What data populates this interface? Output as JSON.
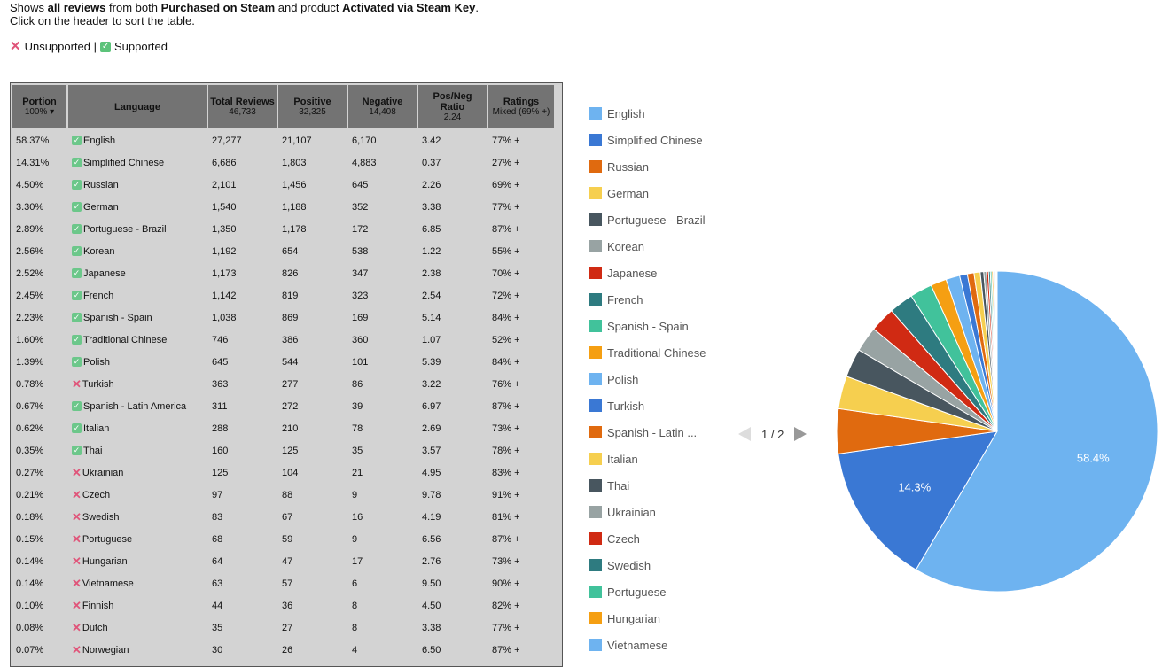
{
  "intro": {
    "l1_a": "Shows ",
    "l1_b": "all reviews",
    "l1_c": " from both ",
    "l1_d": "Purchased on Steam",
    "l1_e": " and product ",
    "l1_f": "Activated via Steam Key",
    "l1_g": ".",
    "line2": "Click on the header to sort the table."
  },
  "key": {
    "unsupported": "Unsupported |",
    "supported": "Supported"
  },
  "headers": {
    "portion": "Portion",
    "portion_sub": "100% ▾",
    "language": "Language",
    "total": "Total Reviews",
    "total_sub": "46,733",
    "positive": "Positive",
    "positive_sub": "32,325",
    "negative": "Negative",
    "negative_sub": "14,408",
    "ratio": "Pos/Neg Ratio",
    "ratio_sub": "2.24",
    "ratings": "Ratings",
    "ratings_sub": "Mixed (69% +)"
  },
  "rows": [
    {
      "portion": "58.37%",
      "supported": true,
      "language": "English",
      "total": "27,277",
      "positive": "21,107",
      "negative": "6,170",
      "ratio": "3.42",
      "rating": "77% +"
    },
    {
      "portion": "14.31%",
      "supported": true,
      "language": "Simplified Chinese",
      "total": "6,686",
      "positive": "1,803",
      "negative": "4,883",
      "ratio": "0.37",
      "rating": "27% +"
    },
    {
      "portion": "4.50%",
      "supported": true,
      "language": "Russian",
      "total": "2,101",
      "positive": "1,456",
      "negative": "645",
      "ratio": "2.26",
      "rating": "69% +"
    },
    {
      "portion": "3.30%",
      "supported": true,
      "language": "German",
      "total": "1,540",
      "positive": "1,188",
      "negative": "352",
      "ratio": "3.38",
      "rating": "77% +"
    },
    {
      "portion": "2.89%",
      "supported": true,
      "language": "Portuguese - Brazil",
      "total": "1,350",
      "positive": "1,178",
      "negative": "172",
      "ratio": "6.85",
      "rating": "87% +"
    },
    {
      "portion": "2.56%",
      "supported": true,
      "language": "Korean",
      "total": "1,192",
      "positive": "654",
      "negative": "538",
      "ratio": "1.22",
      "rating": "55% +"
    },
    {
      "portion": "2.52%",
      "supported": true,
      "language": "Japanese",
      "total": "1,173",
      "positive": "826",
      "negative": "347",
      "ratio": "2.38",
      "rating": "70% +"
    },
    {
      "portion": "2.45%",
      "supported": true,
      "language": "French",
      "total": "1,142",
      "positive": "819",
      "negative": "323",
      "ratio": "2.54",
      "rating": "72% +"
    },
    {
      "portion": "2.23%",
      "supported": true,
      "language": "Spanish - Spain",
      "total": "1,038",
      "positive": "869",
      "negative": "169",
      "ratio": "5.14",
      "rating": "84% +"
    },
    {
      "portion": "1.60%",
      "supported": true,
      "language": "Traditional Chinese",
      "total": "746",
      "positive": "386",
      "negative": "360",
      "ratio": "1.07",
      "rating": "52% +"
    },
    {
      "portion": "1.39%",
      "supported": true,
      "language": "Polish",
      "total": "645",
      "positive": "544",
      "negative": "101",
      "ratio": "5.39",
      "rating": "84% +"
    },
    {
      "portion": "0.78%",
      "supported": false,
      "language": "Turkish",
      "total": "363",
      "positive": "277",
      "negative": "86",
      "ratio": "3.22",
      "rating": "76% +"
    },
    {
      "portion": "0.67%",
      "supported": true,
      "language": "Spanish - Latin America",
      "total": "311",
      "positive": "272",
      "negative": "39",
      "ratio": "6.97",
      "rating": "87% +"
    },
    {
      "portion": "0.62%",
      "supported": true,
      "language": "Italian",
      "total": "288",
      "positive": "210",
      "negative": "78",
      "ratio": "2.69",
      "rating": "73% +"
    },
    {
      "portion": "0.35%",
      "supported": true,
      "language": "Thai",
      "total": "160",
      "positive": "125",
      "negative": "35",
      "ratio": "3.57",
      "rating": "78% +"
    },
    {
      "portion": "0.27%",
      "supported": false,
      "language": "Ukrainian",
      "total": "125",
      "positive": "104",
      "negative": "21",
      "ratio": "4.95",
      "rating": "83% +"
    },
    {
      "portion": "0.21%",
      "supported": false,
      "language": "Czech",
      "total": "97",
      "positive": "88",
      "negative": "9",
      "ratio": "9.78",
      "rating": "91% +"
    },
    {
      "portion": "0.18%",
      "supported": false,
      "language": "Swedish",
      "total": "83",
      "positive": "67",
      "negative": "16",
      "ratio": "4.19",
      "rating": "81% +"
    },
    {
      "portion": "0.15%",
      "supported": false,
      "language": "Portuguese",
      "total": "68",
      "positive": "59",
      "negative": "9",
      "ratio": "6.56",
      "rating": "87% +"
    },
    {
      "portion": "0.14%",
      "supported": false,
      "language": "Hungarian",
      "total": "64",
      "positive": "47",
      "negative": "17",
      "ratio": "2.76",
      "rating": "73% +"
    },
    {
      "portion": "0.14%",
      "supported": false,
      "language": "Vietnamese",
      "total": "63",
      "positive": "57",
      "negative": "6",
      "ratio": "9.50",
      "rating": "90% +"
    },
    {
      "portion": "0.10%",
      "supported": false,
      "language": "Finnish",
      "total": "44",
      "positive": "36",
      "negative": "8",
      "ratio": "4.50",
      "rating": "82% +"
    },
    {
      "portion": "0.08%",
      "supported": false,
      "language": "Dutch",
      "total": "35",
      "positive": "27",
      "negative": "8",
      "ratio": "3.38",
      "rating": "77% +"
    },
    {
      "portion": "0.07%",
      "supported": false,
      "language": "Norwegian",
      "total": "30",
      "positive": "26",
      "negative": "4",
      "ratio": "6.50",
      "rating": "87% +"
    }
  ],
  "legend": [
    {
      "label": "English",
      "color": "#6eb3f0"
    },
    {
      "label": "Simplified Chinese",
      "color": "#3a78d4"
    },
    {
      "label": "Russian",
      "color": "#e06a0f"
    },
    {
      "label": "German",
      "color": "#f6cf4f"
    },
    {
      "label": "Portuguese - Brazil",
      "color": "#48565f"
    },
    {
      "label": "Korean",
      "color": "#98a3a3"
    },
    {
      "label": "Japanese",
      "color": "#d02a13"
    },
    {
      "label": "French",
      "color": "#2e7b80"
    },
    {
      "label": "Spanish - Spain",
      "color": "#41c29b"
    },
    {
      "label": "Traditional Chinese",
      "color": "#f59f12"
    },
    {
      "label": "Polish",
      "color": "#6eb3f0"
    },
    {
      "label": "Turkish",
      "color": "#3a78d4"
    },
    {
      "label": "Spanish - Latin ...",
      "color": "#e06a0f"
    },
    {
      "label": "Italian",
      "color": "#f6cf4f"
    },
    {
      "label": "Thai",
      "color": "#48565f"
    },
    {
      "label": "Ukrainian",
      "color": "#98a3a3"
    },
    {
      "label": "Czech",
      "color": "#d02a13"
    },
    {
      "label": "Swedish",
      "color": "#2e7b80"
    },
    {
      "label": "Portuguese",
      "color": "#41c29b"
    },
    {
      "label": "Hungarian",
      "color": "#f59f12"
    },
    {
      "label": "Vietnamese",
      "color": "#6eb3f0"
    }
  ],
  "pager": {
    "text": "1 / 2"
  },
  "chart_data": {
    "type": "pie",
    "categories": [
      "English",
      "Simplified Chinese",
      "Russian",
      "German",
      "Portuguese - Brazil",
      "Korean",
      "Japanese",
      "French",
      "Spanish - Spain",
      "Traditional Chinese",
      "Polish",
      "Turkish",
      "Spanish - Latin America",
      "Italian",
      "Thai",
      "Ukrainian",
      "Czech",
      "Swedish",
      "Portuguese",
      "Hungarian",
      "Vietnamese",
      "Finnish",
      "Dutch",
      "Norwegian"
    ],
    "values": [
      58.37,
      14.31,
      4.5,
      3.3,
      2.89,
      2.56,
      2.52,
      2.45,
      2.23,
      1.6,
      1.39,
      0.78,
      0.67,
      0.62,
      0.35,
      0.27,
      0.21,
      0.18,
      0.15,
      0.14,
      0.14,
      0.1,
      0.08,
      0.07
    ],
    "colors": [
      "#6eb3f0",
      "#3a78d4",
      "#e06a0f",
      "#f6cf4f",
      "#48565f",
      "#98a3a3",
      "#d02a13",
      "#2e7b80",
      "#41c29b",
      "#f59f12"
    ],
    "slice_labels": [
      {
        "index": 0,
        "text": "58.4%"
      },
      {
        "index": 1,
        "text": "14.3%"
      }
    ],
    "legend_position": "left"
  }
}
